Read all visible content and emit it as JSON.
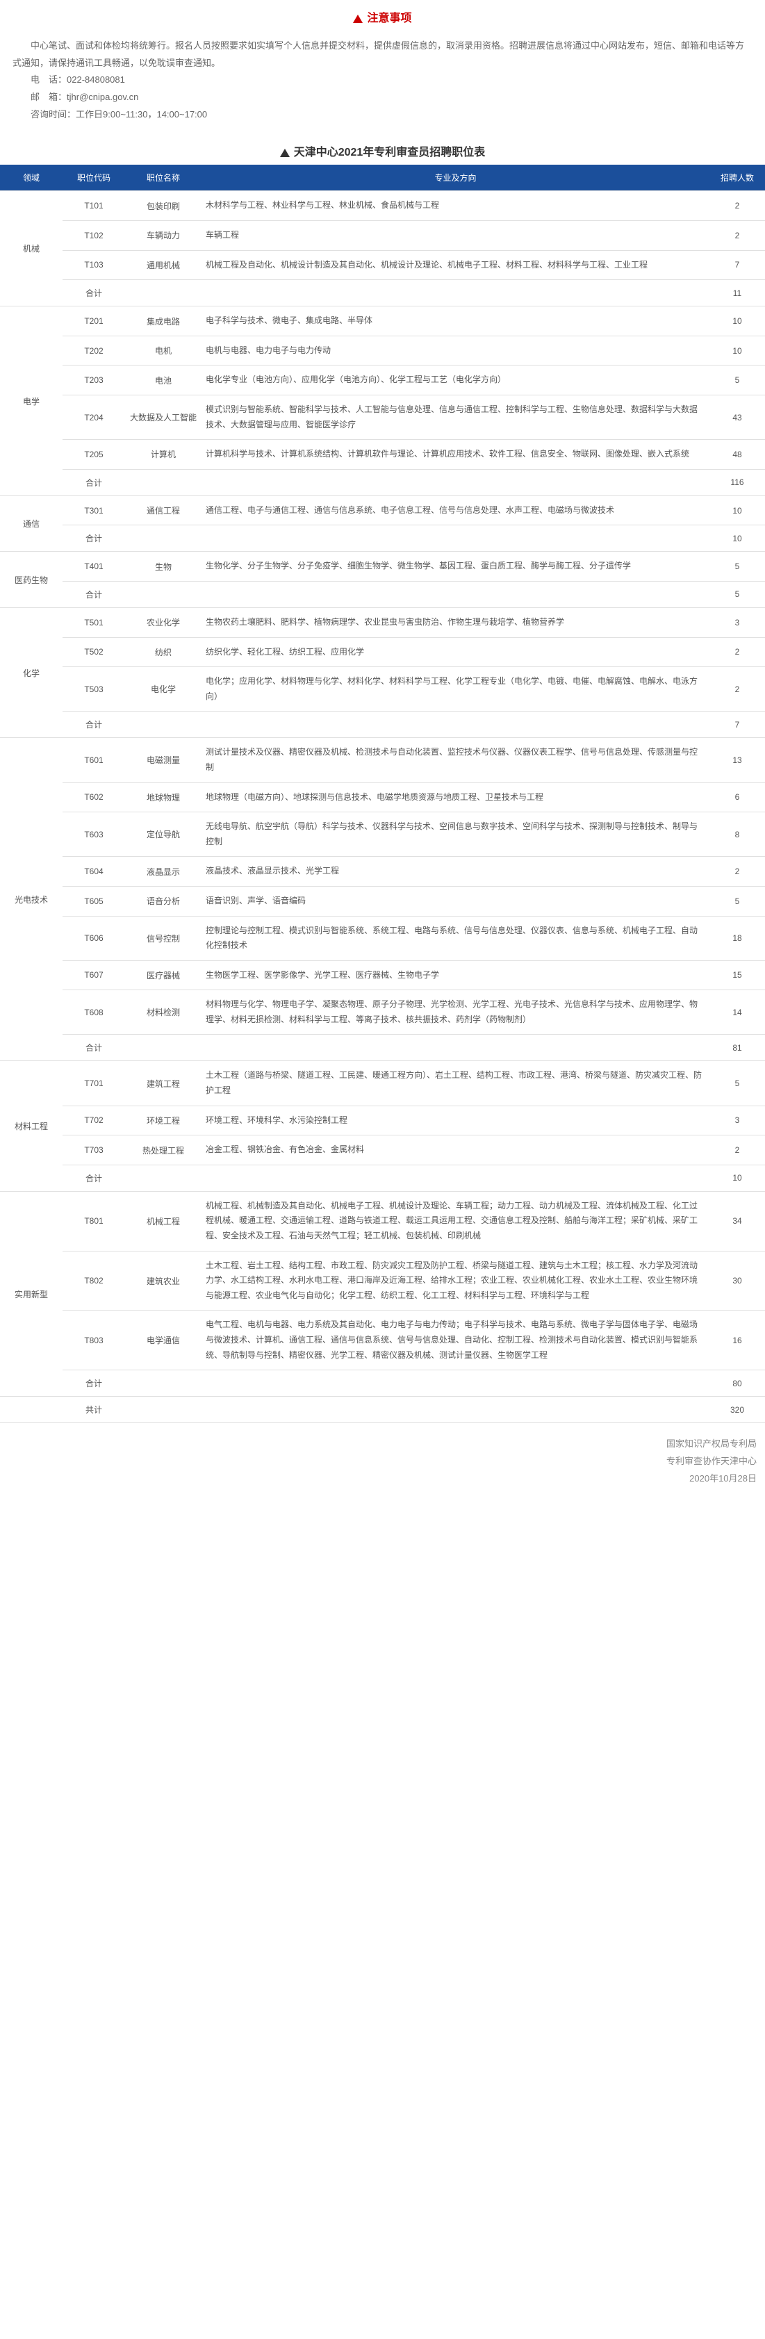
{
  "notice": {
    "title": "注意事项",
    "body": "中心笔试、面试和体检均将统筹行。报名人员按照要求如实填写个人信息并提交材料，提供虚假信息的，取消录用资格。招聘进展信息将通过中心网站发布，短信、邮箱和电话等方式通知，请保持通讯工具畅通，以免耽误审查通知。",
    "tel_label": "电　话：",
    "tel": "022-84808081",
    "mail_label": "邮　箱：",
    "mail": "tjhr@cnipa.gov.cn",
    "hours_label": "咨询时间：",
    "hours": "工作日9:00~11:30，14:00~17:00"
  },
  "table_title": "天津中心2021年专利审查员招聘职位表",
  "headers": [
    "领域",
    "职位代码",
    "职位名称",
    "专业及方向",
    "招聘人数"
  ],
  "col_widths": [
    "90px",
    "90px",
    "110px",
    "",
    "80px"
  ],
  "grand_label": "共计",
  "grand_total": "320",
  "groups": [
    {
      "cat": "机械",
      "subtotal_label": "合计",
      "subtotal": "11",
      "rows": [
        {
          "code": "T101",
          "name": "包装印刷",
          "req": "木材科学与工程、林业科学与工程、林业机械、食品机械与工程",
          "num": "2"
        },
        {
          "code": "T102",
          "name": "车辆动力",
          "req": "车辆工程",
          "num": "2"
        },
        {
          "code": "T103",
          "name": "通用机械",
          "req": "机械工程及自动化、机械设计制造及其自动化、机械设计及理论、机械电子工程、材料工程、材料科学与工程、工业工程",
          "num": "7"
        }
      ]
    },
    {
      "cat": "电学",
      "subtotal_label": "合计",
      "subtotal": "116",
      "rows": [
        {
          "code": "T201",
          "name": "集成电路",
          "req": "电子科学与技术、微电子、集成电路、半导体",
          "num": "10"
        },
        {
          "code": "T202",
          "name": "电机",
          "req": "电机与电器、电力电子与电力传动",
          "num": "10"
        },
        {
          "code": "T203",
          "name": "电池",
          "req": "电化学专业（电池方向）、应用化学（电池方向）、化学工程与工艺（电化学方向）",
          "num": "5"
        },
        {
          "code": "T204",
          "name": "大数据及人工智能",
          "req": "模式识别与智能系统、智能科学与技术、人工智能与信息处理、信息与通信工程、控制科学与工程、生物信息处理、数据科学与大数据技术、大数据管理与应用、智能医学诊疗",
          "num": "43"
        },
        {
          "code": "T205",
          "name": "计算机",
          "req": "计算机科学与技术、计算机系统结构、计算机软件与理论、计算机应用技术、软件工程、信息安全、物联网、图像处理、嵌入式系统",
          "num": "48"
        }
      ]
    },
    {
      "cat": "通信",
      "subtotal_label": "合计",
      "subtotal": "10",
      "rows": [
        {
          "code": "T301",
          "name": "通信工程",
          "req": "通信工程、电子与通信工程、通信与信息系统、电子信息工程、信号与信息处理、水声工程、电磁场与微波技术",
          "num": "10"
        }
      ]
    },
    {
      "cat": "医药生物",
      "subtotal_label": "合计",
      "subtotal": "5",
      "rows": [
        {
          "code": "T401",
          "name": "生物",
          "req": "生物化学、分子生物学、分子免疫学、细胞生物学、微生物学、基因工程、蛋白质工程、酶学与酶工程、分子遗传学",
          "num": "5"
        }
      ]
    },
    {
      "cat": "化学",
      "subtotal_label": "合计",
      "subtotal": "7",
      "rows": [
        {
          "code": "T501",
          "name": "农业化学",
          "req": "生物农药土壤肥料、肥料学、植物病理学、农业昆虫与害虫防治、作物生理与栽培学、植物营养学",
          "num": "3"
        },
        {
          "code": "T502",
          "name": "纺织",
          "req": "纺织化学、轻化工程、纺织工程、应用化学",
          "num": "2"
        },
        {
          "code": "T503",
          "name": "电化学",
          "req": "电化学；应用化学、材料物理与化学、材料化学、材料科学与工程、化学工程专业（电化学、电镀、电催、电解腐蚀、电解水、电泳方向）",
          "num": "2"
        }
      ]
    },
    {
      "cat": "光电技术",
      "subtotal_label": "合计",
      "subtotal": "81",
      "rows": [
        {
          "code": "T601",
          "name": "电磁测量",
          "req": "测试计量技术及仪器、精密仪器及机械、检测技术与自动化装置、监控技术与仪器、仪器仪表工程学、信号与信息处理、传感测量与控制",
          "num": "13"
        },
        {
          "code": "T602",
          "name": "地球物理",
          "req": "地球物理（电磁方向）、地球探测与信息技术、电磁学地质资源与地质工程、卫星技术与工程",
          "num": "6"
        },
        {
          "code": "T603",
          "name": "定位导航",
          "req": "无线电导航、航空宇航（导航）科学与技术、仪器科学与技术、空间信息与数字技术、空间科学与技术、探测制导与控制技术、制导与控制",
          "num": "8"
        },
        {
          "code": "T604",
          "name": "液晶显示",
          "req": "液晶技术、液晶显示技术、光学工程",
          "num": "2"
        },
        {
          "code": "T605",
          "name": "语音分析",
          "req": "语音识别、声学、语音编码",
          "num": "5"
        },
        {
          "code": "T606",
          "name": "信号控制",
          "req": "控制理论与控制工程、模式识别与智能系统、系统工程、电路与系统、信号与信息处理、仪器仪表、信息与系统、机械电子工程、自动化控制技术",
          "num": "18"
        },
        {
          "code": "T607",
          "name": "医疗器械",
          "req": "生物医学工程、医学影像学、光学工程、医疗器械、生物电子学",
          "num": "15"
        },
        {
          "code": "T608",
          "name": "材料检测",
          "req": "材料物理与化学、物理电子学、凝聚态物理、原子分子物理、光学检测、光学工程、光电子技术、光信息科学与技术、应用物理学、物理学、材料无损检测、材料科学与工程、等离子技术、核共振技术、药剂学（药物制剂）",
          "num": "14"
        }
      ]
    },
    {
      "cat": "材料工程",
      "subtotal_label": "合计",
      "subtotal": "10",
      "rows": [
        {
          "code": "T701",
          "name": "建筑工程",
          "req": "土木工程（道路与桥梁、隧道工程、工民建、暖通工程方向）、岩土工程、结构工程、市政工程、港湾、桥梁与隧道、防灾减灾工程、防护工程",
          "num": "5"
        },
        {
          "code": "T702",
          "name": "环境工程",
          "req": "环境工程、环境科学、水污染控制工程",
          "num": "3"
        },
        {
          "code": "T703",
          "name": "热处理工程",
          "req": "冶金工程、钢铁冶金、有色冶金、金属材料",
          "num": "2"
        }
      ]
    },
    {
      "cat": "实用新型",
      "subtotal_label": "合计",
      "subtotal": "80",
      "rows": [
        {
          "code": "T801",
          "name": "机械工程",
          "req": "机械工程、机械制造及其自动化、机械电子工程、机械设计及理论、车辆工程；动力工程、动力机械及工程、流体机械及工程、化工过程机械、暖通工程、交通运输工程、道路与铁道工程、载运工具运用工程、交通信息工程及控制、船舶与海洋工程；采矿机械、采矿工程、安全技术及工程、石油与天然气工程；轻工机械、包装机械、印刷机械",
          "num": "34"
        },
        {
          "code": "T802",
          "name": "建筑农业",
          "req": "土木工程、岩土工程、结构工程、市政工程、防灾减灾工程及防护工程、桥梁与隧道工程、建筑与土木工程；核工程、水力学及河流动力学、水工结构工程、水利水电工程、港口海岸及近海工程、给排水工程；农业工程、农业机械化工程、农业水土工程、农业生物环境与能源工程、农业电气化与自动化；化学工程、纺织工程、化工工程、材料科学与工程、环境科学与工程",
          "num": "30"
        },
        {
          "code": "T803",
          "name": "电学通信",
          "req": "电气工程、电机与电器、电力系统及其自动化、电力电子与电力传动；电子科学与技术、电路与系统、微电子学与固体电子学、电磁场与微波技术、计算机、通信工程、通信与信息系统、信号与信息处理、自动化、控制工程、检测技术与自动化装置、模式识别与智能系统、导航制导与控制、精密仪器、光学工程、精密仪器及机械、测试计量仪器、生物医学工程",
          "num": "16"
        }
      ]
    }
  ],
  "footer": {
    "line1": "国家知识产权局专利局",
    "line2": "专利审查协作天津中心",
    "line3": "2020年10月28日"
  }
}
